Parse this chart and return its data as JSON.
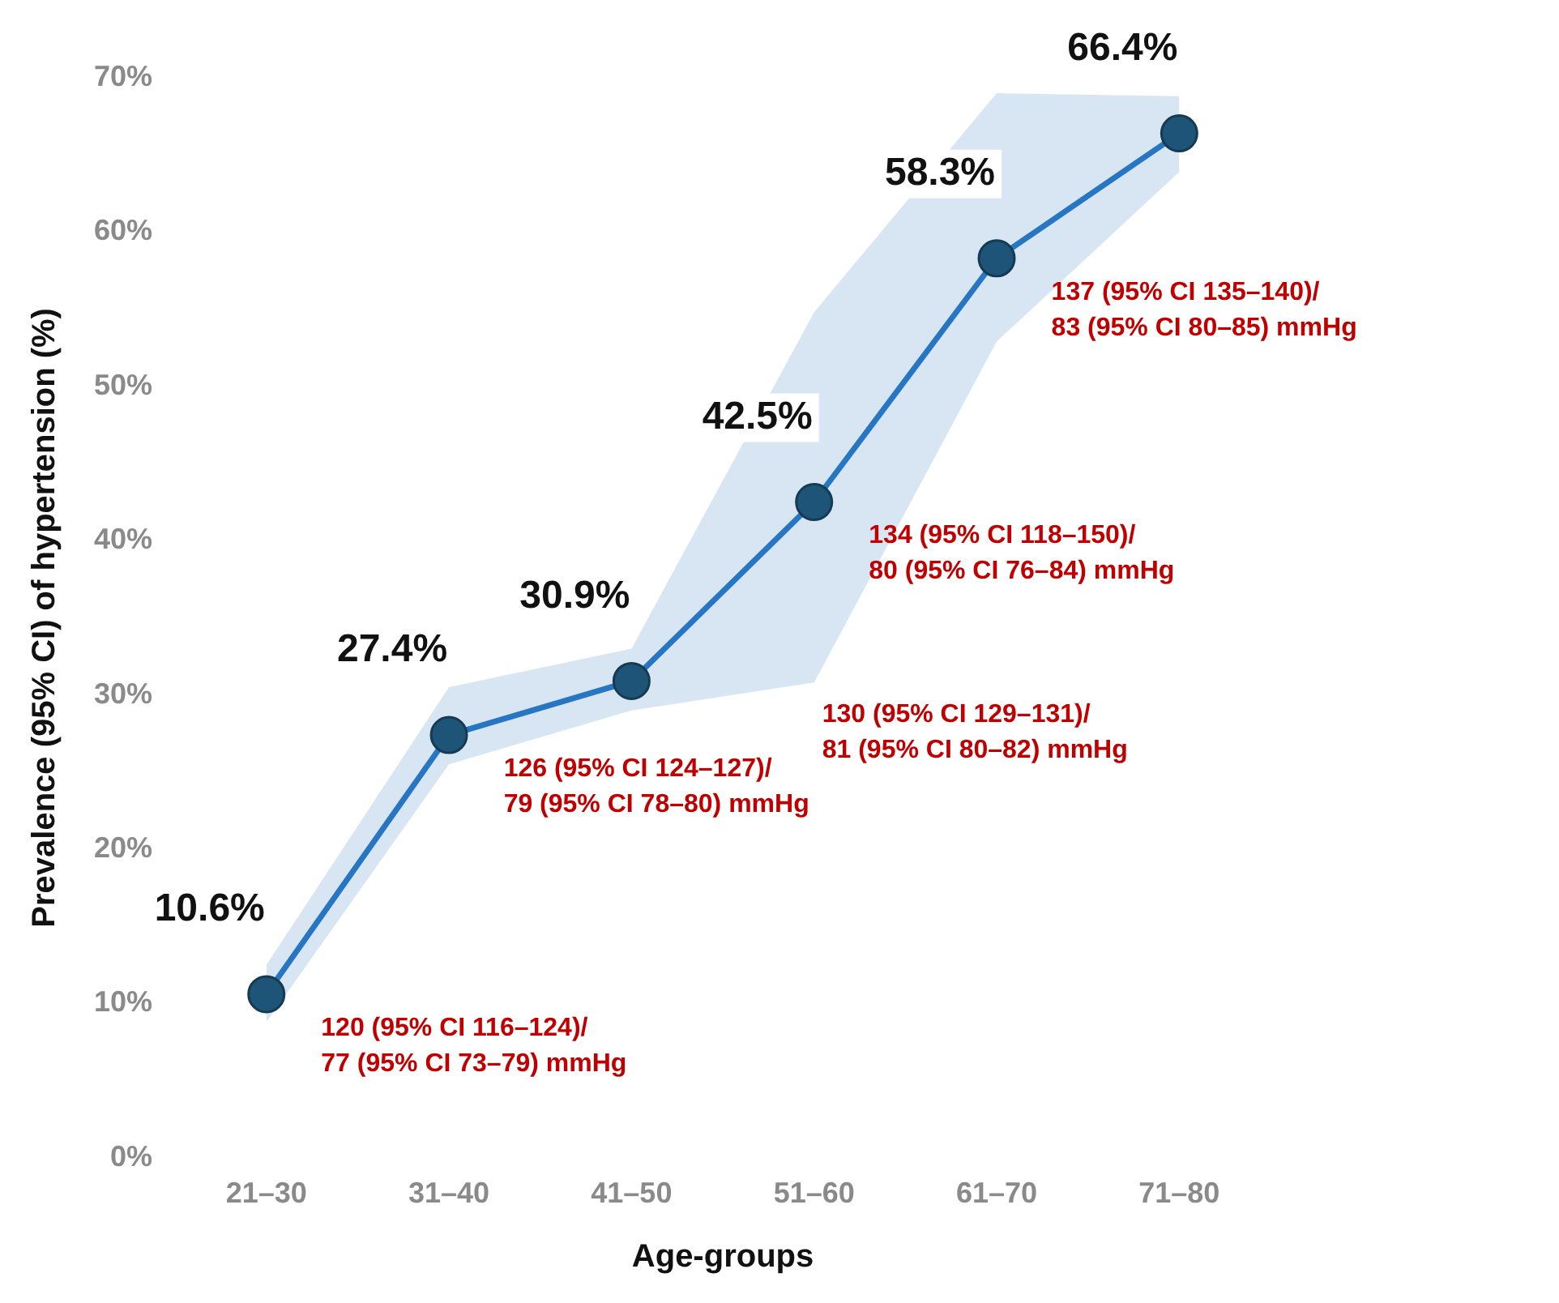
{
  "chart_data": {
    "type": "line",
    "xlabel": "Age-groups",
    "ylabel": "Prevalence (95% CI) of hypertension (%)",
    "categories": [
      "21–30",
      "31–40",
      "41–50",
      "51–60",
      "61–70",
      "71–80"
    ],
    "series": [
      {
        "color": "#2676c4",
        "values": [
          10.6,
          27.4,
          30.9,
          42.5,
          58.3,
          66.4
        ],
        "value_labels": [
          "10.6%",
          "27.4%",
          "30.9%",
          "42.5%",
          "58.3%",
          "66.4%"
        ],
        "lower": [
          8.8,
          25.5,
          29,
          30.8,
          52.9,
          63.9
        ],
        "upper": [
          12.5,
          30.5,
          33,
          54.8,
          69,
          68.8
        ]
      }
    ],
    "ylim": [
      0,
      70
    ],
    "yticks": [
      {
        "value": 0,
        "label": "0%"
      },
      {
        "value": 10,
        "label": "10%"
      },
      {
        "value": 20,
        "label": "20%"
      },
      {
        "value": 30,
        "label": "30%"
      },
      {
        "value": 40,
        "label": "40%"
      },
      {
        "value": 50,
        "label": "50%"
      },
      {
        "value": 60,
        "label": "60%"
      },
      {
        "value": 70,
        "label": "70%"
      }
    ],
    "grid": false,
    "legend": false,
    "marker": "circle",
    "line_style": "solid",
    "annotations": [
      "120 (95% CI 116–124)/\n77 (95% CI 73–79) mmHg",
      "126 (95% CI 124–127)/\n79 (95% CI 78–80) mmHg",
      "130 (95% CI 129–131)/\n81 (95% CI 80–82) mmHg",
      "134 (95% CI 118–150)/\n80 (95% CI 76–84) mmHg",
      "137 (95% CI 135–140)/\n83 (95% CI 80–85) mmHg"
    ]
  }
}
